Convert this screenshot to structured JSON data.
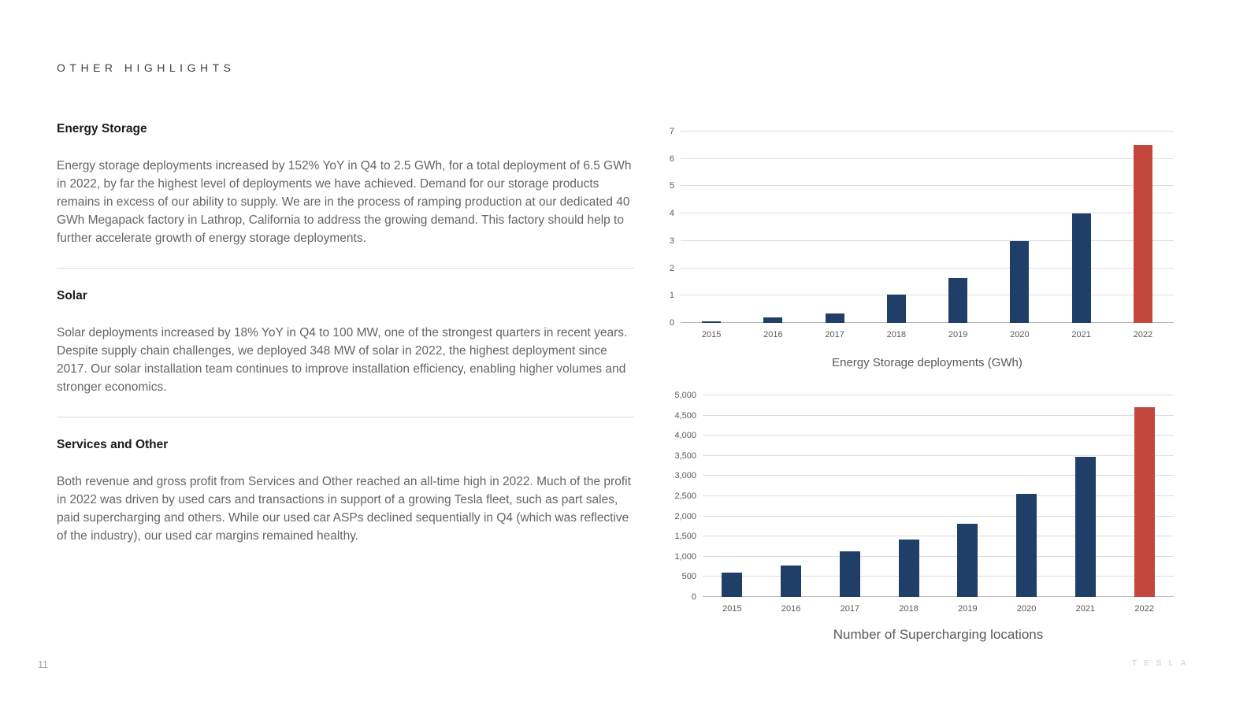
{
  "header": {
    "title": "OTHER HIGHLIGHTS"
  },
  "sections": [
    {
      "heading": "Energy Storage",
      "body": "Energy storage deployments increased by 152% YoY in Q4 to 2.5 GWh, for a total deployment of 6.5 GWh in 2022, by far the highest level of deployments we have achieved. Demand for our storage products remains in excess of our ability to supply. We are in the process of ramping production at our dedicated 40 GWh Megapack factory in Lathrop, California to address the growing demand. This factory should help to further accelerate growth of energy storage deployments."
    },
    {
      "heading": "Solar",
      "body": "Solar deployments increased by 18% YoY in Q4 to 100 MW, one of the strongest quarters in recent years. Despite supply chain challenges, we deployed 348 MW of solar in 2022, the highest deployment since 2017. Our solar installation team continues to improve installation efficiency, enabling higher volumes and stronger economics."
    },
    {
      "heading": "Services and Other",
      "body": "Both revenue and gross profit from Services and Other reached an all-time high in 2022. Much of the profit in 2022 was driven by used cars and transactions in support of a growing Tesla fleet, such as part sales, paid supercharging and others. While our used car ASPs declined sequentially in Q4 (which was reflective of the industry), our used car margins remained healthy."
    }
  ],
  "chart_data": [
    {
      "type": "bar",
      "title": "Energy Storage deployments (GWh)",
      "categories": [
        "2015",
        "2016",
        "2017",
        "2018",
        "2019",
        "2020",
        "2021",
        "2022"
      ],
      "values": [
        0.05,
        0.2,
        0.35,
        1.05,
        1.65,
        3.0,
        4.0,
        6.5
      ],
      "xlabel": "",
      "ylabel": "",
      "ylim": [
        0,
        7
      ],
      "ytick_step": 1,
      "grid": true,
      "legend": "none",
      "bar_color": "#203f68",
      "highlight_color": "#c4473d",
      "highlight_index": 7
    },
    {
      "type": "bar",
      "title": "Number of Supercharging locations",
      "categories": [
        "2015",
        "2016",
        "2017",
        "2018",
        "2019",
        "2020",
        "2021",
        "2022"
      ],
      "values": [
        600,
        790,
        1130,
        1420,
        1820,
        2560,
        3480,
        4700
      ],
      "xlabel": "",
      "ylabel": "",
      "ylim": [
        0,
        5000
      ],
      "ytick_step": 500,
      "grid": true,
      "legend": "none",
      "bar_color": "#203f68",
      "highlight_color": "#c4473d",
      "highlight_index": 7
    }
  ],
  "footer": {
    "page_number": "11",
    "brand": "TESLA"
  }
}
